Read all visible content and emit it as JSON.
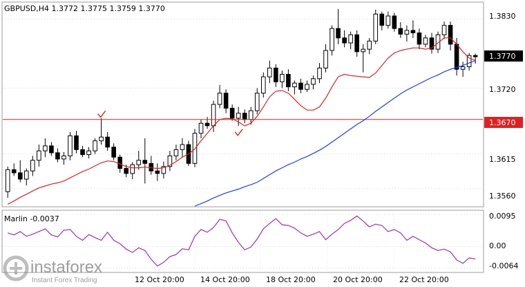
{
  "window": {
    "symbol_line": "GBPUSD,H4  1.3772 1.3775 1.3759 1.3770"
  },
  "price_axis": {
    "ticks": [
      "1.3830",
      "1.3720",
      "1.3615",
      "1.3560"
    ],
    "current_price": "1.3770",
    "level_price": "1.3670"
  },
  "time_axis": {
    "labels": [
      "12 Oct 20:00",
      "14 Oct 20:00",
      "18 Oct 20:00",
      "20 Oct 20:00",
      "22 Oct 20:00"
    ]
  },
  "indicator": {
    "title": "Marlin -0.0037",
    "ticks": [
      "0.0095",
      "0.00",
      "-0.0064"
    ]
  },
  "watermark": {
    "brand": "instaforex",
    "tagline": "Instant Forex Trading"
  },
  "colors": {
    "bull": "#000000",
    "bear": "#000000",
    "ma_fast": "#e02020",
    "ma_slow": "#1a3cff",
    "level_line": "#e02020",
    "oscillator": "#9b30b8",
    "current_price_bg": "#000000",
    "level_price_bg": "#e02020"
  },
  "chart_data": {
    "type": "candlestick",
    "title": "GBPUSD,H4",
    "ylim": [
      1.3532,
      1.3856
    ],
    "horizontal_level": 1.367,
    "candles": [
      [
        1.3555,
        1.3595,
        1.3545,
        1.359
      ],
      [
        1.359,
        1.36,
        1.358,
        1.3585
      ],
      [
        1.3585,
        1.3605,
        1.357,
        1.3575
      ],
      [
        1.3575,
        1.3592,
        1.3565,
        1.3588
      ],
      [
        1.3588,
        1.3612,
        1.358,
        1.3605
      ],
      [
        1.3605,
        1.363,
        1.3595,
        1.362
      ],
      [
        1.362,
        1.364,
        1.361,
        1.3628
      ],
      [
        1.3628,
        1.3634,
        1.3612,
        1.3617
      ],
      [
        1.3617,
        1.3624,
        1.3602,
        1.3607
      ],
      [
        1.3607,
        1.3618,
        1.3598,
        1.3612
      ],
      [
        1.3612,
        1.365,
        1.3605,
        1.3644
      ],
      [
        1.3644,
        1.3652,
        1.3616,
        1.3622
      ],
      [
        1.3622,
        1.3628,
        1.361,
        1.3614
      ],
      [
        1.3614,
        1.3626,
        1.3608,
        1.362
      ],
      [
        1.362,
        1.364,
        1.3615,
        1.3636
      ],
      [
        1.3636,
        1.3672,
        1.363,
        1.3642
      ],
      [
        1.3642,
        1.365,
        1.362,
        1.3626
      ],
      [
        1.3626,
        1.3632,
        1.3605,
        1.361
      ],
      [
        1.361,
        1.3614,
        1.3585,
        1.3592
      ],
      [
        1.3592,
        1.3598,
        1.3578,
        1.3584
      ],
      [
        1.3584,
        1.3602,
        1.3575,
        1.3598
      ],
      [
        1.3598,
        1.362,
        1.359,
        1.3605
      ],
      [
        1.3605,
        1.364,
        1.3568,
        1.36
      ],
      [
        1.36,
        1.3612,
        1.3582,
        1.3588
      ],
      [
        1.3588,
        1.36,
        1.3572,
        1.3584
      ],
      [
        1.3584,
        1.3603,
        1.3576,
        1.3595
      ],
      [
        1.3595,
        1.362,
        1.3588,
        1.3612
      ],
      [
        1.3612,
        1.363,
        1.3605,
        1.3622
      ],
      [
        1.3622,
        1.364,
        1.361,
        1.363
      ],
      [
        1.363,
        1.3636,
        1.3596,
        1.36
      ],
      [
        1.36,
        1.3655,
        1.3594,
        1.3648
      ],
      [
        1.3648,
        1.367,
        1.364,
        1.3664
      ],
      [
        1.3664,
        1.3674,
        1.3655,
        1.366
      ],
      [
        1.366,
        1.37,
        1.365,
        1.3694
      ],
      [
        1.3694,
        1.3725,
        1.3688,
        1.3712
      ],
      [
        1.3712,
        1.3718,
        1.368,
        1.3688
      ],
      [
        1.3688,
        1.3694,
        1.3668,
        1.3672
      ],
      [
        1.3672,
        1.369,
        1.366,
        1.368
      ],
      [
        1.368,
        1.3686,
        1.3664,
        1.367
      ],
      [
        1.367,
        1.369,
        1.3662,
        1.3684
      ],
      [
        1.3684,
        1.372,
        1.3678,
        1.3712
      ],
      [
        1.3712,
        1.3745,
        1.3705,
        1.3738
      ],
      [
        1.3738,
        1.3764,
        1.3728,
        1.3752
      ],
      [
        1.3752,
        1.3758,
        1.3722,
        1.373
      ],
      [
        1.373,
        1.3748,
        1.372,
        1.3742
      ],
      [
        1.3742,
        1.375,
        1.3715,
        1.3722
      ],
      [
        1.3722,
        1.3732,
        1.371,
        1.3728
      ],
      [
        1.3728,
        1.3735,
        1.3712,
        1.3718
      ],
      [
        1.3718,
        1.3732,
        1.3714,
        1.3726
      ],
      [
        1.3726,
        1.374,
        1.3718,
        1.3735
      ],
      [
        1.3735,
        1.376,
        1.3728,
        1.3752
      ],
      [
        1.3752,
        1.379,
        1.3745,
        1.378
      ],
      [
        1.378,
        1.382,
        1.3772,
        1.3815
      ],
      [
        1.3815,
        1.3846,
        1.379,
        1.38
      ],
      [
        1.38,
        1.3812,
        1.3785,
        1.3792
      ],
      [
        1.3792,
        1.381,
        1.3782,
        1.3805
      ],
      [
        1.3805,
        1.3812,
        1.377,
        1.3778
      ],
      [
        1.3778,
        1.379,
        1.3745,
        1.3782
      ],
      [
        1.3782,
        1.38,
        1.3774,
        1.3795
      ],
      [
        1.3795,
        1.3845,
        1.379,
        1.3838
      ],
      [
        1.3838,
        1.3842,
        1.3812,
        1.382
      ],
      [
        1.382,
        1.3842,
        1.3815,
        1.3835
      ],
      [
        1.3835,
        1.384,
        1.381,
        1.3815
      ],
      [
        1.3815,
        1.3825,
        1.38,
        1.3806
      ],
      [
        1.3806,
        1.382,
        1.3794,
        1.3812
      ],
      [
        1.3812,
        1.3828,
        1.38,
        1.3808
      ],
      [
        1.3808,
        1.3815,
        1.3782,
        1.379
      ],
      [
        1.379,
        1.3805,
        1.3785,
        1.38
      ],
      [
        1.38,
        1.3808,
        1.3775,
        1.3782
      ],
      [
        1.3782,
        1.381,
        1.3776,
        1.3805
      ],
      [
        1.3805,
        1.3826,
        1.3798,
        1.382
      ],
      [
        1.382,
        1.3826,
        1.378,
        1.379
      ],
      [
        1.379,
        1.38,
        1.374,
        1.375
      ],
      [
        1.375,
        1.3762,
        1.3738,
        1.3754
      ],
      [
        1.3754,
        1.3776,
        1.3748,
        1.3772
      ],
      [
        1.3772,
        1.3775,
        1.3759,
        1.377
      ]
    ],
    "ma_fast": [
      1.3535,
      1.354,
      1.3546,
      1.3551,
      1.3556,
      1.3561,
      1.3564,
      1.3567,
      1.3569,
      1.3572,
      1.3577,
      1.3582,
      1.3587,
      1.3591,
      1.3596,
      1.3601,
      1.3604,
      1.3603,
      1.3599,
      1.3595,
      1.3593,
      1.3593,
      1.3594,
      1.3593,
      1.3592,
      1.3593,
      1.3597,
      1.3603,
      1.361,
      1.3615,
      1.3623,
      1.3636,
      1.3648,
      1.366,
      1.367,
      1.3672,
      1.3671,
      1.3666,
      1.366,
      1.3664,
      1.3675,
      1.369,
      1.3706,
      1.3715,
      1.3716,
      1.3712,
      1.3702,
      1.3692,
      1.3685,
      1.3685,
      1.369,
      1.3704,
      1.3722,
      1.3738,
      1.3742,
      1.374,
      1.3739,
      1.3738,
      1.3737,
      1.3744,
      1.3756,
      1.3768,
      1.3776,
      1.378,
      1.3782,
      1.3784,
      1.3784,
      1.3782,
      1.3784,
      1.3792,
      1.38,
      1.38,
      1.379,
      1.3778,
      1.3768,
      1.3764
    ],
    "ma_slow": [
      null,
      null,
      null,
      null,
      null,
      null,
      null,
      null,
      null,
      null,
      null,
      null,
      null,
      null,
      null,
      null,
      null,
      null,
      null,
      null,
      null,
      null,
      null,
      null,
      null,
      null,
      null,
      null,
      null,
      null,
      1.3532,
      1.3536,
      1.354,
      1.3545,
      1.3549,
      1.3553,
      1.3556,
      1.3559,
      1.3563,
      1.3566,
      1.357,
      1.3576,
      1.3582,
      1.3588,
      1.3593,
      1.3598,
      1.3602,
      1.3607,
      1.3611,
      1.3616,
      1.3621,
      1.3627,
      1.3634,
      1.3641,
      1.3648,
      1.3655,
      1.3662,
      1.3668,
      1.3675,
      1.3683,
      1.369,
      1.3697,
      1.3704,
      1.3711,
      1.3717,
      1.3722,
      1.3727,
      1.3732,
      1.3737,
      1.3741,
      1.3746,
      1.375,
      1.3753,
      1.3756,
      1.376,
      1.3764
    ],
    "markers": [
      {
        "index": 15,
        "kind": "check",
        "at": 1.3677
      },
      {
        "index": 37,
        "kind": "check",
        "at": 1.3648
      }
    ],
    "indicator_series": {
      "name": "Marlin",
      "ylim": [
        -0.0075,
        0.0105
      ],
      "values": [
        0.004,
        0.0034,
        0.0044,
        0.003,
        0.0036,
        0.0044,
        0.0052,
        0.0034,
        0.0028,
        0.0048,
        0.005,
        0.003,
        0.0018,
        0.0035,
        0.0026,
        0.0018,
        0.0042,
        0.0018,
        0.0008,
        -0.0008,
        -0.0018,
        -0.0004,
        -0.0012,
        -0.0038,
        -0.0058,
        -0.0047,
        -0.003,
        -0.0024,
        -0.0007,
        -0.001,
        0.003,
        0.005,
        0.0042,
        0.0056,
        0.008,
        0.0076,
        0.004,
        0.0012,
        -0.001,
        -0.0002,
        0.0022,
        0.0052,
        0.0068,
        0.0082,
        0.0064,
        0.0062,
        0.0054,
        0.004,
        0.003,
        0.0036,
        0.0044,
        0.002,
        0.0036,
        0.005,
        0.0068,
        0.0077,
        0.009,
        0.0075,
        0.0058,
        0.0066,
        0.0062,
        0.0044,
        0.005,
        0.004,
        0.0018,
        0.003,
        0.002,
        0.001,
        -0.0004,
        -0.0012,
        -0.0008,
        -0.0016,
        -0.004,
        -0.005,
        -0.0034,
        -0.0037
      ]
    }
  }
}
